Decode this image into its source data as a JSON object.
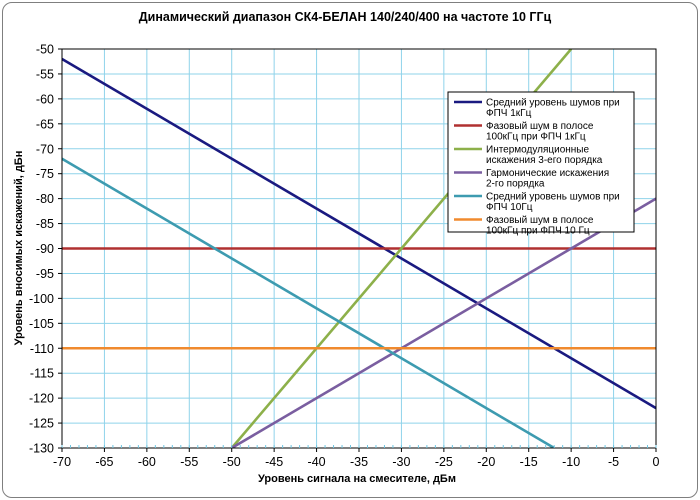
{
  "chart_data": {
    "type": "line",
    "title": "Динамический диапазон  СК4-БЕЛАН 140/240/400 на частоте 10 ГГц",
    "xlabel": "Уровень сигнала на смесителе, дБм",
    "ylabel": "Уровень вносимых искажений, дБн",
    "xlim": [
      -70,
      0
    ],
    "ylim": [
      -130,
      -50
    ],
    "x_ticks": [
      -70,
      -65,
      -60,
      -55,
      -50,
      -45,
      -40,
      -35,
      -30,
      -25,
      -20,
      -15,
      -10,
      -5,
      0
    ],
    "y_ticks": [
      -50,
      -55,
      -60,
      -65,
      -70,
      -75,
      -80,
      -85,
      -90,
      -95,
      -100,
      -105,
      -110,
      -115,
      -120,
      -125,
      -130
    ],
    "x_tick_labels": [
      "-70",
      "-65",
      "-60",
      "-55",
      "-50",
      "-45",
      "-40",
      "-35",
      "-30",
      "-25",
      "-20",
      "-15",
      "-10",
      "-5",
      "0"
    ],
    "y_tick_labels": [
      "-50",
      "-55",
      "-60",
      "-65",
      "-70",
      "-75",
      "-80",
      "-85",
      "-90",
      "-95",
      "-100",
      "-105",
      "-110",
      "-115",
      "-120",
      "-125",
      "-130"
    ],
    "grid": true,
    "legend_position": "right",
    "series": [
      {
        "name": "Средний уровень шумов при ФПЧ 1кГц",
        "color": "#1a1a80",
        "x": [
          -70,
          0
        ],
        "y": [
          -52,
          -122
        ]
      },
      {
        "name": "Фазовый шум в полосе 100кГц при ФПЧ 1кГц",
        "color": "#b03030",
        "x": [
          -70,
          0
        ],
        "y": [
          -90,
          -90
        ]
      },
      {
        "name": "Интермодуляционные искажения 3-его порядка",
        "color": "#8db04a",
        "x": [
          -50,
          -10
        ],
        "y": [
          -130,
          -50
        ]
      },
      {
        "name": "Гармонические искажения 2-го порядка",
        "color": "#7a5ea0",
        "x": [
          -50,
          0
        ],
        "y": [
          -130,
          -80
        ]
      },
      {
        "name": "Средний уровень шумов при ФПЧ 10Гц",
        "color": "#3d9bb0",
        "x": [
          -70,
          -12
        ],
        "y": [
          -72,
          -130
        ]
      },
      {
        "name": "Фазовый шум в полосе 100кГц при ФПЧ 10 Гц",
        "color": "#f08a2e",
        "x": [
          -70,
          0
        ],
        "y": [
          -110,
          -110
        ]
      }
    ],
    "legend_lines": [
      [
        "Средний уровень шумов при",
        "ФПЧ 1кГц"
      ],
      [
        "Фазовый шум в полосе",
        "100кГц при ФПЧ 1кГц"
      ],
      [
        "Интермодуляционные",
        "искажения 3-его порядка"
      ],
      [
        "Гармонические искажения",
        "2-го порядка"
      ],
      [
        "Средний уровень шумов при",
        "ФПЧ 10Гц"
      ],
      [
        "Фазовый шум в полосе",
        "100кГц при ФПЧ 10 Гц"
      ]
    ]
  }
}
